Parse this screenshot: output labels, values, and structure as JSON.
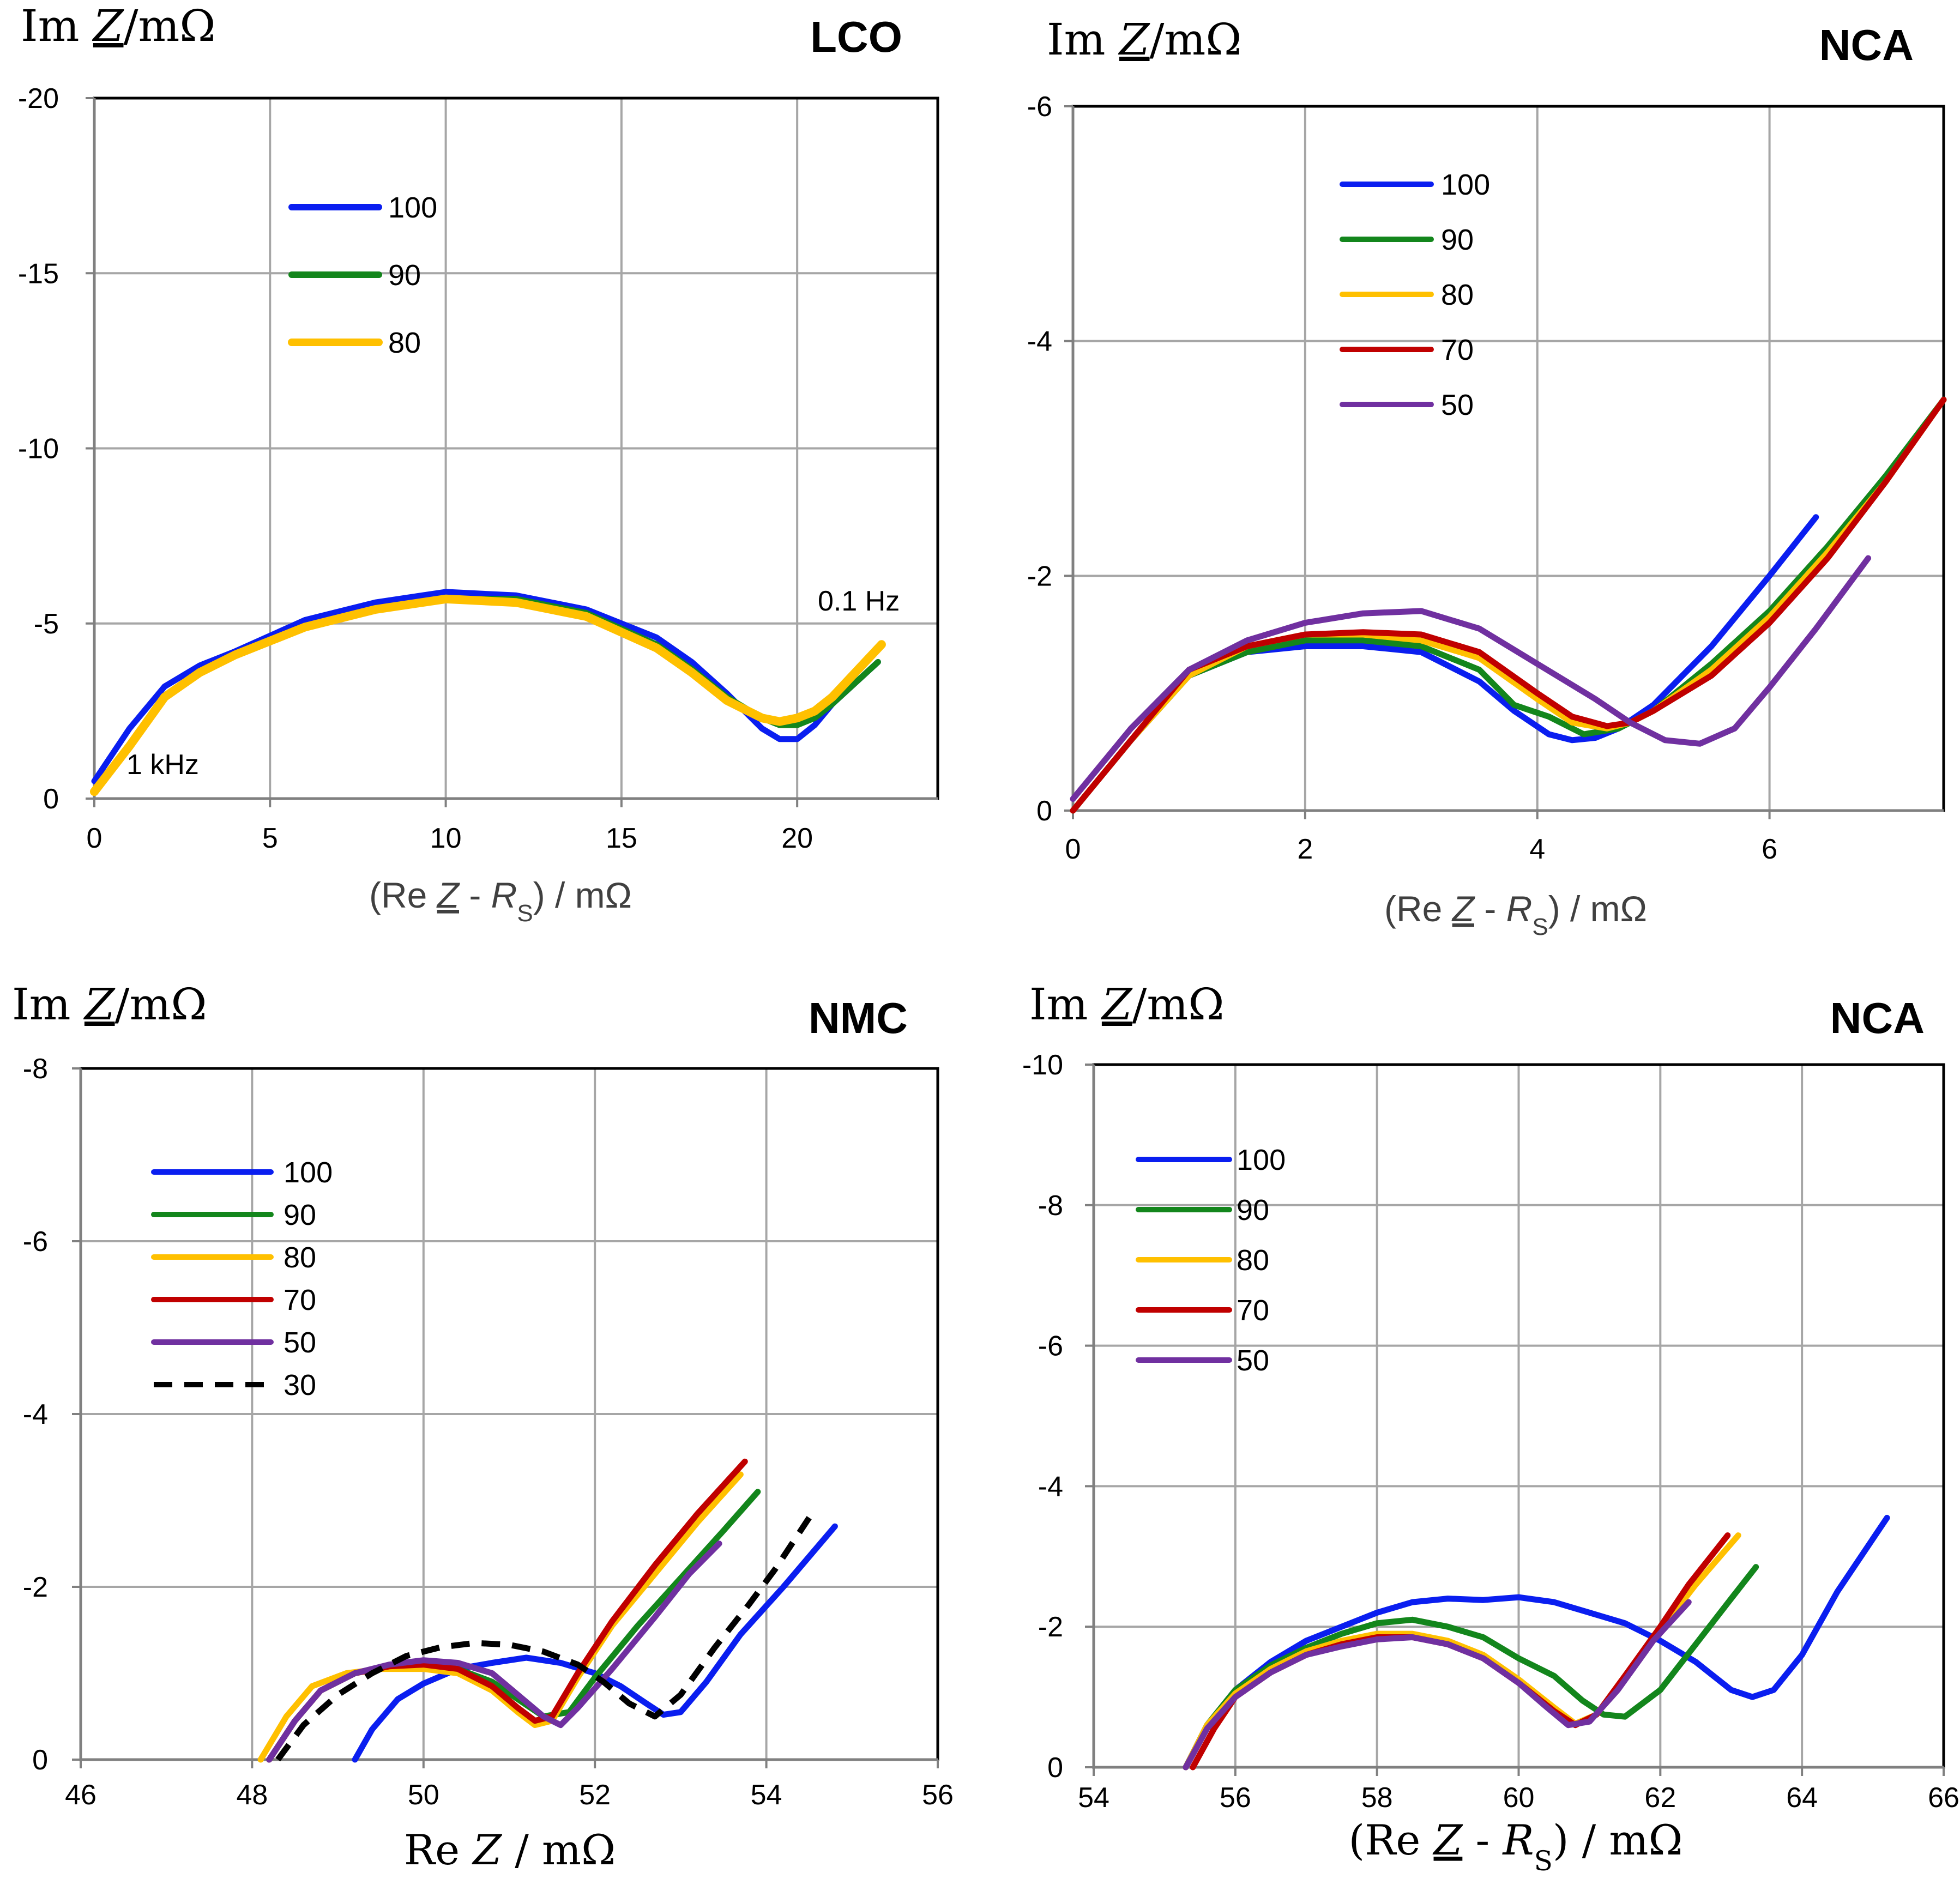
{
  "colors": {
    "100": "#0a1ef0",
    "90": "#13861c",
    "80": "#ffc000",
    "70": "#c00000",
    "50": "#7030a0",
    "30": "#000000",
    "grid": "#a6a6a6",
    "frame": "#000000"
  },
  "chart_data": [
    {
      "type": "line",
      "title": "LCO",
      "ylabel_parts": [
        "Im ",
        "Z",
        "/mΩ"
      ],
      "xlabel_parts": [
        "(Re ",
        "Z",
        "  - ",
        "R",
        "S",
        ") / mΩ"
      ],
      "xlim": [
        0,
        24
      ],
      "ylim": [
        0,
        -20
      ],
      "xticks": [
        0,
        5,
        10,
        15,
        20
      ],
      "yticks": [
        0,
        -5,
        -10,
        -15,
        -20
      ],
      "xtick_labels": [
        "0",
        "5",
        "10",
        "15",
        "20"
      ],
      "ytick_labels": [
        "0",
        "-5",
        "-10",
        "-15",
        "-20"
      ],
      "annotations": [
        {
          "text": "1 kHz",
          "x": 1.0,
          "y": -0.7
        },
        {
          "text": "0.1 Hz",
          "x": 20.7,
          "y": -5.3
        }
      ],
      "series": [
        {
          "name": "100",
          "x": [
            0,
            1,
            2,
            3,
            4,
            6,
            8,
            10,
            12,
            14,
            16,
            17,
            18,
            19,
            19.5,
            20,
            20.5,
            21,
            22.3
          ],
          "y": [
            -0.5,
            -2.0,
            -3.2,
            -3.8,
            -4.2,
            -5.1,
            -5.6,
            -5.9,
            -5.8,
            -5.4,
            -4.6,
            -3.9,
            -3.0,
            -2.0,
            -1.7,
            -1.7,
            -2.1,
            -2.7,
            -3.9
          ]
        },
        {
          "name": "90",
          "x": [
            0,
            1,
            2,
            3,
            4,
            6,
            8,
            10,
            12,
            14,
            16,
            17,
            18,
            19,
            19.5,
            20,
            20.5,
            21,
            22.3
          ],
          "y": [
            -0.2,
            -1.5,
            -2.9,
            -3.6,
            -4.1,
            -4.9,
            -5.4,
            -5.7,
            -5.7,
            -5.3,
            -4.4,
            -3.7,
            -2.9,
            -2.3,
            -2.1,
            -2.1,
            -2.3,
            -2.7,
            -3.9
          ]
        },
        {
          "name": "80",
          "x": [
            0,
            1,
            2,
            3,
            4,
            6,
            8,
            10,
            12,
            14,
            16,
            17,
            18,
            19,
            19.5,
            20,
            20.5,
            21,
            22.4
          ],
          "y": [
            -0.2,
            -1.5,
            -2.9,
            -3.6,
            -4.1,
            -4.9,
            -5.4,
            -5.7,
            -5.6,
            -5.2,
            -4.3,
            -3.6,
            -2.8,
            -2.3,
            -2.2,
            -2.3,
            -2.5,
            -2.9,
            -4.4
          ]
        }
      ]
    },
    {
      "type": "line",
      "title": "NCA",
      "ylabel_parts": [
        "Im ",
        "Z",
        "/mΩ"
      ],
      "xlabel_parts": [
        "(Re ",
        "Z",
        "  - ",
        "R",
        "S",
        ") / mΩ"
      ],
      "xlim": [
        0,
        7.5
      ],
      "ylim": [
        0,
        -6
      ],
      "xticks": [
        0,
        2,
        4,
        6
      ],
      "yticks": [
        0,
        -2,
        -4,
        -6
      ],
      "xtick_labels": [
        "0",
        "2",
        "4",
        "6"
      ],
      "ytick_labels": [
        "0",
        "-2",
        "-4",
        "-6"
      ],
      "annotations": [],
      "series": [
        {
          "name": "100",
          "x": [
            0,
            0.5,
            1,
            1.5,
            2,
            2.5,
            3,
            3.5,
            3.8,
            4.1,
            4.3,
            4.5,
            4.7,
            5,
            5.5,
            6,
            6.4
          ],
          "y": [
            0,
            -0.6,
            -1.15,
            -1.35,
            -1.4,
            -1.4,
            -1.35,
            -1.1,
            -0.85,
            -0.65,
            -0.6,
            -0.62,
            -0.7,
            -0.9,
            -1.4,
            -2.0,
            -2.5
          ]
        },
        {
          "name": "90",
          "x": [
            0,
            0.5,
            1,
            1.5,
            2,
            2.5,
            3,
            3.5,
            3.8,
            4.1,
            4.4,
            4.7,
            5,
            5.5,
            6,
            6.5,
            7,
            7.5
          ],
          "y": [
            0,
            -0.6,
            -1.15,
            -1.35,
            -1.45,
            -1.45,
            -1.4,
            -1.2,
            -0.9,
            -0.8,
            -0.65,
            -0.7,
            -0.85,
            -1.25,
            -1.7,
            -2.25,
            -2.85,
            -3.5
          ]
        },
        {
          "name": "80",
          "x": [
            0,
            0.5,
            1,
            1.5,
            2,
            2.5,
            3,
            3.5,
            4,
            4.3,
            4.6,
            4.8,
            5,
            5.5,
            6,
            6.5,
            7,
            7.5
          ],
          "y": [
            0,
            -0.6,
            -1.15,
            -1.4,
            -1.5,
            -1.5,
            -1.45,
            -1.3,
            -0.95,
            -0.75,
            -0.7,
            -0.75,
            -0.85,
            -1.2,
            -1.65,
            -2.2,
            -2.8,
            -3.5
          ]
        },
        {
          "name": "70",
          "x": [
            0,
            0.5,
            1,
            1.5,
            2,
            2.5,
            3,
            3.5,
            4,
            4.3,
            4.6,
            4.8,
            5,
            5.5,
            6,
            6.5,
            7,
            7.5
          ],
          "y": [
            0,
            -0.6,
            -1.2,
            -1.4,
            -1.5,
            -1.52,
            -1.5,
            -1.35,
            -1.0,
            -0.8,
            -0.72,
            -0.75,
            -0.85,
            -1.15,
            -1.6,
            -2.15,
            -2.8,
            -3.5
          ]
        },
        {
          "name": "50",
          "x": [
            0,
            0.5,
            1,
            1.5,
            2,
            2.5,
            3,
            3.5,
            4,
            4.5,
            4.8,
            5.1,
            5.4,
            5.7,
            6,
            6.4,
            6.85
          ],
          "y": [
            -0.1,
            -0.7,
            -1.2,
            -1.45,
            -1.6,
            -1.68,
            -1.7,
            -1.55,
            -1.25,
            -0.95,
            -0.75,
            -0.6,
            -0.57,
            -0.7,
            -1.05,
            -1.55,
            -2.15
          ]
        }
      ]
    },
    {
      "type": "line",
      "title": "NMC",
      "ylabel_parts": [
        "Im ",
        "Z",
        "/mΩ"
      ],
      "xlabel_parts": [
        "Re ",
        "Z",
        " / mΩ"
      ],
      "xlim": [
        46,
        56
      ],
      "ylim": [
        0,
        -8
      ],
      "xticks": [
        46,
        48,
        50,
        52,
        54,
        56
      ],
      "yticks": [
        0,
        -2,
        -4,
        -6,
        -8
      ],
      "xtick_labels": [
        "46",
        "48",
        "50",
        "52",
        "54",
        "56"
      ],
      "ytick_labels": [
        "0",
        "-2",
        "-4",
        "-6",
        "-8"
      ],
      "annotations": [],
      "series": [
        {
          "name": "100",
          "x": [
            49.2,
            49.4,
            49.7,
            50,
            50.4,
            50.8,
            51.2,
            51.6,
            52,
            52.3,
            52.6,
            52.8,
            53,
            53.3,
            53.7,
            54.2,
            54.8
          ],
          "y": [
            0,
            -0.35,
            -0.7,
            -0.88,
            -1.05,
            -1.12,
            -1.18,
            -1.12,
            -1.0,
            -0.85,
            -0.65,
            -0.52,
            -0.55,
            -0.9,
            -1.45,
            -2.0,
            -2.7
          ]
        },
        {
          "name": "90",
          "x": [
            48.2,
            48.5,
            48.8,
            49.2,
            49.6,
            50,
            50.4,
            50.8,
            51.1,
            51.4,
            51.7,
            52,
            52.5,
            53,
            53.5,
            53.9
          ],
          "y": [
            0,
            -0.45,
            -0.8,
            -1.0,
            -1.08,
            -1.1,
            -1.05,
            -0.9,
            -0.7,
            -0.5,
            -0.55,
            -0.95,
            -1.55,
            -2.1,
            -2.65,
            -3.1
          ]
        },
        {
          "name": "80",
          "x": [
            48.1,
            48.4,
            48.7,
            49.1,
            49.5,
            50,
            50.4,
            50.8,
            51.1,
            51.3,
            51.5,
            51.8,
            52.2,
            52.7,
            53.2,
            53.7
          ],
          "y": [
            0,
            -0.5,
            -0.85,
            -1.0,
            -1.05,
            -1.05,
            -1.0,
            -0.8,
            -0.55,
            -0.4,
            -0.45,
            -0.95,
            -1.55,
            -2.15,
            -2.75,
            -3.3
          ]
        },
        {
          "name": "70",
          "x": [
            48.2,
            48.5,
            48.8,
            49.2,
            49.6,
            50,
            50.4,
            50.8,
            51.1,
            51.3,
            51.5,
            51.8,
            52.2,
            52.7,
            53.2,
            53.75
          ],
          "y": [
            0,
            -0.45,
            -0.8,
            -1.0,
            -1.08,
            -1.1,
            -1.05,
            -0.85,
            -0.6,
            -0.45,
            -0.5,
            -1.0,
            -1.6,
            -2.25,
            -2.85,
            -3.45
          ]
        },
        {
          "name": "50",
          "x": [
            48.2,
            48.5,
            48.8,
            49.2,
            49.6,
            50,
            50.4,
            50.8,
            51.1,
            51.4,
            51.6,
            51.8,
            52.2,
            52.7,
            53.1,
            53.45
          ],
          "y": [
            0,
            -0.45,
            -0.8,
            -1.0,
            -1.1,
            -1.15,
            -1.12,
            -1.0,
            -0.75,
            -0.5,
            -0.4,
            -0.6,
            -1.05,
            -1.65,
            -2.15,
            -2.5
          ]
        },
        {
          "name": "30",
          "dashed": true,
          "x": [
            48.3,
            48.6,
            49,
            49.4,
            49.8,
            50.2,
            50.6,
            51,
            51.4,
            51.8,
            52.1,
            52.4,
            52.7,
            53,
            53.4,
            53.8,
            54.1,
            54.5
          ],
          "y": [
            0,
            -0.4,
            -0.75,
            -1.0,
            -1.2,
            -1.3,
            -1.35,
            -1.33,
            -1.25,
            -1.1,
            -0.9,
            -0.65,
            -0.5,
            -0.75,
            -1.3,
            -1.8,
            -2.2,
            -2.8
          ]
        }
      ]
    },
    {
      "type": "line",
      "title": "NCA",
      "ylabel_parts": [
        "Im ",
        "Z",
        "/mΩ"
      ],
      "xlabel_parts": [
        "(Re ",
        "Z",
        "  - ",
        "R",
        "S",
        ") / mΩ"
      ],
      "xlim": [
        54,
        66
      ],
      "ylim": [
        0,
        -10
      ],
      "xticks": [
        54,
        56,
        58,
        60,
        62,
        64,
        66
      ],
      "yticks": [
        0,
        -2,
        -4,
        -6,
        -8,
        -10
      ],
      "xtick_labels": [
        "54",
        "56",
        "58",
        "60",
        "62",
        "64",
        "66"
      ],
      "ytick_labels": [
        "0",
        "-2",
        "-4",
        "-6",
        "-8",
        "-10"
      ],
      "annotations": [],
      "series": [
        {
          "name": "100",
          "x": [
            55.3,
            55.6,
            56,
            56.5,
            57,
            57.5,
            58,
            58.5,
            59,
            59.5,
            60,
            60.5,
            61,
            61.5,
            62,
            62.5,
            63,
            63.3,
            63.6,
            64,
            64.5,
            65.2
          ],
          "y": [
            0,
            -0.6,
            -1.1,
            -1.5,
            -1.8,
            -2.0,
            -2.2,
            -2.35,
            -2.4,
            -2.38,
            -2.42,
            -2.35,
            -2.2,
            -2.05,
            -1.8,
            -1.5,
            -1.1,
            -1.0,
            -1.1,
            -1.6,
            -2.5,
            -3.55
          ]
        },
        {
          "name": "90",
          "x": [
            55.3,
            55.6,
            56,
            56.5,
            57,
            57.5,
            58,
            58.5,
            59,
            59.5,
            60,
            60.5,
            60.9,
            61.2,
            61.5,
            62,
            62.5,
            63,
            63.35
          ],
          "y": [
            0,
            -0.6,
            -1.1,
            -1.45,
            -1.7,
            -1.9,
            -2.05,
            -2.1,
            -2.0,
            -1.85,
            -1.55,
            -1.3,
            -0.95,
            -0.75,
            -0.72,
            -1.1,
            -1.75,
            -2.4,
            -2.85
          ]
        },
        {
          "name": "80",
          "x": [
            55.3,
            55.6,
            56,
            56.5,
            57,
            57.5,
            58,
            58.5,
            59,
            59.5,
            60,
            60.5,
            60.8,
            61.1,
            61.5,
            62,
            62.5,
            63.1
          ],
          "y": [
            0,
            -0.6,
            -1.05,
            -1.4,
            -1.65,
            -1.8,
            -1.9,
            -1.9,
            -1.8,
            -1.6,
            -1.25,
            -0.85,
            -0.62,
            -0.75,
            -1.3,
            -1.95,
            -2.6,
            -3.3
          ]
        },
        {
          "name": "70",
          "x": [
            55.4,
            55.7,
            56,
            56.5,
            57,
            57.5,
            58,
            58.5,
            59,
            59.5,
            60,
            60.5,
            60.8,
            61.1,
            61.5,
            62,
            62.4,
            62.95
          ],
          "y": [
            0,
            -0.55,
            -1.0,
            -1.35,
            -1.6,
            -1.75,
            -1.85,
            -1.85,
            -1.75,
            -1.55,
            -1.2,
            -0.8,
            -0.6,
            -0.75,
            -1.3,
            -2.0,
            -2.6,
            -3.3
          ]
        },
        {
          "name": "50",
          "x": [
            55.3,
            55.6,
            56,
            56.5,
            57,
            57.5,
            58,
            58.5,
            59,
            59.5,
            60,
            60.4,
            60.7,
            61,
            61.4,
            61.9,
            62.4
          ],
          "y": [
            0,
            -0.55,
            -1.0,
            -1.35,
            -1.6,
            -1.72,
            -1.82,
            -1.85,
            -1.75,
            -1.55,
            -1.2,
            -0.85,
            -0.6,
            -0.65,
            -1.1,
            -1.8,
            -2.35
          ]
        }
      ]
    }
  ]
}
